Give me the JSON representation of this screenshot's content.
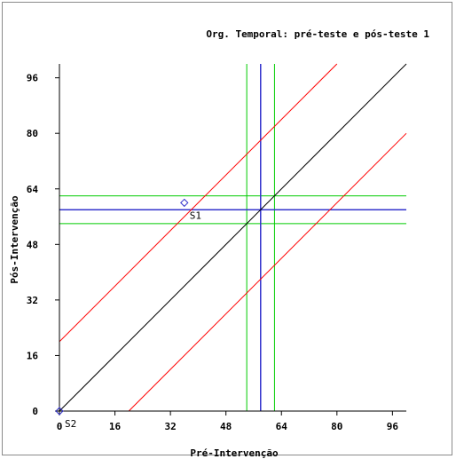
{
  "chart_data": {
    "type": "scatter",
    "title": "Org. Temporal: pré-teste e pós-teste 1",
    "xlabel": "Pré-Intervenção",
    "ylabel": "Pós-Intervenção",
    "xlim": [
      0,
      100
    ],
    "ylim": [
      0,
      100
    ],
    "xticks": [
      0,
      16,
      32,
      48,
      64,
      80,
      96
    ],
    "yticks": [
      0,
      16,
      32,
      48,
      64,
      80,
      96
    ],
    "grid": false,
    "points": [
      {
        "label": "S1",
        "x": 36,
        "y": 60
      },
      {
        "label": "S2",
        "x": 0,
        "y": 0
      }
    ],
    "reference_lines": {
      "identity": {
        "slope": 1,
        "intercept": 0,
        "color": "#000000"
      },
      "bands": {
        "slope": 1,
        "intercepts": [
          20,
          -20
        ],
        "color": "#ff0000"
      },
      "mean_x": {
        "value": 58,
        "color": "#3333cc"
      },
      "mean_y": {
        "value": 58,
        "color": "#3333cc"
      },
      "ci_x": {
        "values": [
          54,
          62
        ],
        "color": "#00cc00"
      },
      "ci_y": {
        "values": [
          54,
          62
        ],
        "color": "#00cc00"
      }
    },
    "colors": {
      "point": "#3333cc",
      "axis": "#000000"
    }
  }
}
